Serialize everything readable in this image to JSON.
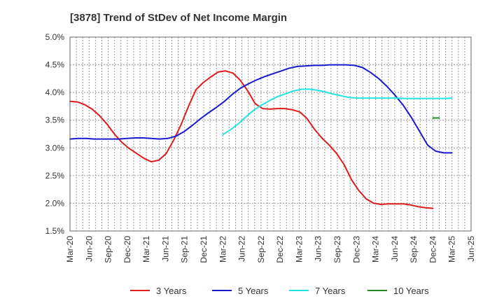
{
  "chart_data": {
    "type": "line",
    "title": "[3878]  Trend of StDev of Net Income Margin",
    "xlabel": "",
    "ylabel": "",
    "x_ticks": [
      "Mar-20",
      "Jun-20",
      "Sep-20",
      "Dec-20",
      "Mar-21",
      "Jun-21",
      "Sep-21",
      "Dec-21",
      "Mar-22",
      "Jun-22",
      "Sep-22",
      "Dec-22",
      "Mar-23",
      "Jun-23",
      "Sep-23",
      "Dec-23",
      "Mar-24",
      "Jun-24",
      "Sep-24",
      "Dec-24",
      "Mar-25",
      "Jun-25"
    ],
    "y_ticks": [
      "1.5%",
      "2.0%",
      "2.5%",
      "3.0%",
      "3.5%",
      "4.0%",
      "4.5%",
      "5.0%"
    ],
    "ylim": [
      1.5,
      5.0
    ],
    "grid": true,
    "legend_position": "bottom",
    "series": [
      {
        "name": "3 Years",
        "color": "#dd1c1c",
        "values": [
          3.84,
          3.83,
          3.78,
          3.7,
          3.58,
          3.43,
          3.25,
          3.1,
          2.99,
          2.9,
          2.81,
          2.75,
          2.78,
          2.9,
          3.14,
          3.42,
          3.75,
          4.05,
          4.18,
          4.28,
          4.37,
          4.39,
          4.35,
          4.22,
          4.03,
          3.8,
          3.71,
          3.7,
          3.71,
          3.71,
          3.69,
          3.65,
          3.53,
          3.34,
          3.18,
          3.05,
          2.9,
          2.7,
          2.43,
          2.23,
          2.08,
          2.0,
          1.98,
          1.99,
          1.99,
          1.99,
          1.97,
          1.94,
          1.92,
          1.91
        ]
      },
      {
        "name": "5 Years",
        "color": "#1a1acc",
        "values": [
          3.16,
          3.17,
          3.17,
          3.16,
          3.16,
          3.16,
          3.16,
          3.17,
          3.18,
          3.18,
          3.17,
          3.16,
          3.17,
          3.21,
          3.29,
          3.4,
          3.52,
          3.63,
          3.73,
          3.84,
          3.97,
          4.08,
          4.16,
          4.23,
          4.29,
          4.34,
          4.39,
          4.44,
          4.47,
          4.48,
          4.49,
          4.49,
          4.5,
          4.5,
          4.5,
          4.49,
          4.45,
          4.36,
          4.25,
          4.11,
          3.95,
          3.77,
          3.55,
          3.3,
          3.05,
          2.94,
          2.91,
          2.91
        ]
      },
      {
        "name": "7 Years",
        "color": "#22e4e4",
        "values": [
          3.24,
          3.33,
          3.44,
          3.57,
          3.69,
          3.78,
          3.86,
          3.93,
          3.98,
          4.03,
          4.06,
          4.06,
          4.04,
          4.01,
          3.97,
          3.94,
          3.91,
          3.9,
          3.9,
          3.9,
          3.9,
          3.9,
          3.9,
          3.89,
          3.89,
          3.89,
          3.89,
          3.89,
          3.89,
          3.9
        ]
      },
      {
        "name": "10 Years",
        "color": "#228822",
        "values": [
          3.54,
          3.54
        ]
      }
    ]
  }
}
